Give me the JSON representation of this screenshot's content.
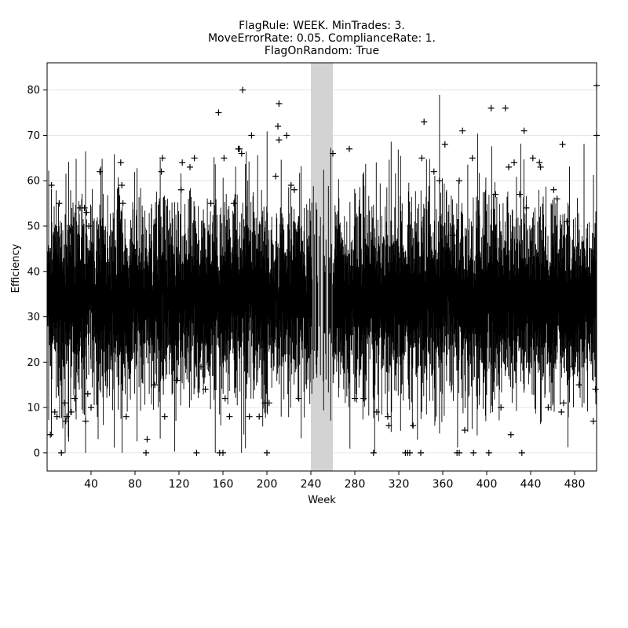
{
  "chart_data": {
    "type": "line",
    "title_lines": [
      "FlagRule: WEEK. MinTrades: 3.",
      "MoveErrorRate: 0.05. ComplianceRate: 1.",
      "FlagOnRandom: True"
    ],
    "xlabel": "Week",
    "ylabel": "Efficiency",
    "xlim": [
      0,
      500
    ],
    "ylim": [
      -4,
      86
    ],
    "x_ticks": [
      40,
      80,
      120,
      160,
      200,
      240,
      280,
      320,
      360,
      400,
      440,
      480
    ],
    "y_ticks": [
      0,
      10,
      20,
      30,
      40,
      50,
      60,
      70,
      80
    ],
    "grid": "horizontal",
    "highlight_span": {
      "x_start": 240,
      "x_end": 260,
      "color": "#d3d3d3"
    },
    "series": [
      {
        "style": "vertical-range-bars",
        "color": "#000000",
        "center_level": 34,
        "typical_spread": [
          12,
          58
        ]
      }
    ],
    "outliers": [
      {
        "x": 3,
        "y": 4
      },
      {
        "x": 4,
        "y": 59
      },
      {
        "x": 7,
        "y": 9
      },
      {
        "x": 9,
        "y": 8
      },
      {
        "x": 11,
        "y": 55
      },
      {
        "x": 13,
        "y": 0
      },
      {
        "x": 16,
        "y": 11
      },
      {
        "x": 17,
        "y": 7
      },
      {
        "x": 18,
        "y": 8
      },
      {
        "x": 21,
        "y": 49
      },
      {
        "x": 22,
        "y": 9
      },
      {
        "x": 25,
        "y": 12
      },
      {
        "x": 30,
        "y": 54
      },
      {
        "x": 34,
        "y": 54
      },
      {
        "x": 35,
        "y": 7
      },
      {
        "x": 36,
        "y": 53
      },
      {
        "x": 37,
        "y": 13
      },
      {
        "x": 38,
        "y": 50
      },
      {
        "x": 40,
        "y": 10
      },
      {
        "x": 48,
        "y": 62
      },
      {
        "x": 67,
        "y": 64
      },
      {
        "x": 68,
        "y": 59
      },
      {
        "x": 69,
        "y": 55
      },
      {
        "x": 72,
        "y": 8
      },
      {
        "x": 90,
        "y": 0
      },
      {
        "x": 91,
        "y": 3
      },
      {
        "x": 98,
        "y": 15
      },
      {
        "x": 104,
        "y": 62
      },
      {
        "x": 105,
        "y": 65
      },
      {
        "x": 107,
        "y": 8
      },
      {
        "x": 118,
        "y": 16
      },
      {
        "x": 122,
        "y": 58
      },
      {
        "x": 123,
        "y": 64
      },
      {
        "x": 130,
        "y": 63
      },
      {
        "x": 134,
        "y": 65
      },
      {
        "x": 136,
        "y": 0
      },
      {
        "x": 140,
        "y": 19
      },
      {
        "x": 144,
        "y": 14
      },
      {
        "x": 149,
        "y": 55
      },
      {
        "x": 156,
        "y": 75
      },
      {
        "x": 157,
        "y": 0
      },
      {
        "x": 160,
        "y": 0
      },
      {
        "x": 161,
        "y": 65
      },
      {
        "x": 162,
        "y": 12
      },
      {
        "x": 166,
        "y": 8
      },
      {
        "x": 170,
        "y": 55
      },
      {
        "x": 174,
        "y": 67
      },
      {
        "x": 175,
        "y": 67
      },
      {
        "x": 177,
        "y": 66
      },
      {
        "x": 178,
        "y": 80
      },
      {
        "x": 184,
        "y": 8
      },
      {
        "x": 186,
        "y": 70
      },
      {
        "x": 193,
        "y": 8
      },
      {
        "x": 198,
        "y": 11
      },
      {
        "x": 200,
        "y": 0
      },
      {
        "x": 202,
        "y": 11
      },
      {
        "x": 208,
        "y": 61
      },
      {
        "x": 210,
        "y": 72
      },
      {
        "x": 211,
        "y": 77
      },
      {
        "x": 211,
        "y": 69
      },
      {
        "x": 218,
        "y": 70
      },
      {
        "x": 222,
        "y": 59
      },
      {
        "x": 225,
        "y": 58
      },
      {
        "x": 229,
        "y": 12
      },
      {
        "x": 260,
        "y": 66
      },
      {
        "x": 275,
        "y": 67
      },
      {
        "x": 280,
        "y": 12
      },
      {
        "x": 288,
        "y": 12
      },
      {
        "x": 297,
        "y": 0
      },
      {
        "x": 300,
        "y": 9
      },
      {
        "x": 310,
        "y": 8
      },
      {
        "x": 311,
        "y": 6
      },
      {
        "x": 326,
        "y": 0
      },
      {
        "x": 328,
        "y": 0
      },
      {
        "x": 330,
        "y": 0
      },
      {
        "x": 333,
        "y": 6
      },
      {
        "x": 340,
        "y": 0
      },
      {
        "x": 341,
        "y": 65
      },
      {
        "x": 343,
        "y": 73
      },
      {
        "x": 352,
        "y": 62
      },
      {
        "x": 357,
        "y": 60
      },
      {
        "x": 362,
        "y": 68
      },
      {
        "x": 369,
        "y": 48
      },
      {
        "x": 373,
        "y": 0
      },
      {
        "x": 375,
        "y": 0
      },
      {
        "x": 375,
        "y": 60
      },
      {
        "x": 378,
        "y": 71
      },
      {
        "x": 380,
        "y": 5
      },
      {
        "x": 387,
        "y": 65
      },
      {
        "x": 388,
        "y": 0
      },
      {
        "x": 402,
        "y": 0
      },
      {
        "x": 404,
        "y": 76
      },
      {
        "x": 408,
        "y": 57
      },
      {
        "x": 413,
        "y": 10
      },
      {
        "x": 417,
        "y": 76
      },
      {
        "x": 420,
        "y": 63
      },
      {
        "x": 422,
        "y": 4
      },
      {
        "x": 425,
        "y": 64
      },
      {
        "x": 430,
        "y": 57
      },
      {
        "x": 432,
        "y": 0
      },
      {
        "x": 434,
        "y": 71
      },
      {
        "x": 436,
        "y": 54
      },
      {
        "x": 442,
        "y": 65
      },
      {
        "x": 448,
        "y": 64
      },
      {
        "x": 449,
        "y": 63
      },
      {
        "x": 456,
        "y": 10
      },
      {
        "x": 461,
        "y": 58
      },
      {
        "x": 464,
        "y": 56
      },
      {
        "x": 468,
        "y": 9
      },
      {
        "x": 469,
        "y": 68
      },
      {
        "x": 470,
        "y": 11
      },
      {
        "x": 473,
        "y": 51
      },
      {
        "x": 478,
        "y": 19
      },
      {
        "x": 484,
        "y": 15
      },
      {
        "x": 497,
        "y": 7
      },
      {
        "x": 499,
        "y": 14
      },
      {
        "x": 500,
        "y": 70
      },
      {
        "x": 500,
        "y": 81
      }
    ]
  }
}
